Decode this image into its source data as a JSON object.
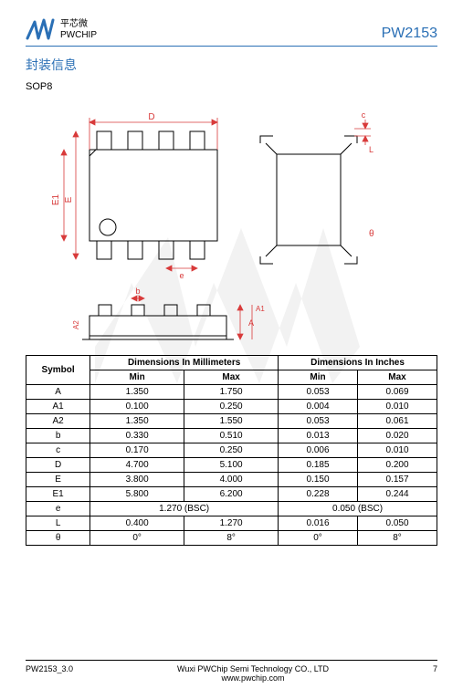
{
  "header": {
    "company_cn": "平芯微",
    "company_en": "PWCHIP",
    "part_number": "PW2153",
    "logo_color": "#2a6fb5"
  },
  "section": {
    "title": "封装信息",
    "package_type": "SOP8"
  },
  "drawing": {
    "dim_color": "#d83a3a",
    "line_color": "#000000",
    "labels": {
      "D": "D",
      "E": "E",
      "E1": "E1",
      "e": "e",
      "b": "b",
      "A": "A",
      "A1": "A1",
      "A2": "A2",
      "c": "c",
      "L": "L",
      "theta": "θ"
    }
  },
  "table": {
    "symbol_header": "Symbol",
    "mm_header": "Dimensions In Millimeters",
    "in_header": "Dimensions In Inches",
    "min_label": "Min",
    "max_label": "Max",
    "rows": [
      {
        "sym": "A",
        "mm_min": "1.350",
        "mm_max": "1.750",
        "in_min": "0.053",
        "in_max": "0.069"
      },
      {
        "sym": "A1",
        "mm_min": "0.100",
        "mm_max": "0.250",
        "in_min": "0.004",
        "in_max": "0.010"
      },
      {
        "sym": "A2",
        "mm_min": "1.350",
        "mm_max": "1.550",
        "in_min": "0.053",
        "in_max": "0.061"
      },
      {
        "sym": "b",
        "mm_min": "0.330",
        "mm_max": "0.510",
        "in_min": "0.013",
        "in_max": "0.020"
      },
      {
        "sym": "c",
        "mm_min": "0.170",
        "mm_max": "0.250",
        "in_min": "0.006",
        "in_max": "0.010"
      },
      {
        "sym": "D",
        "mm_min": "4.700",
        "mm_max": "5.100",
        "in_min": "0.185",
        "in_max": "0.200"
      },
      {
        "sym": "E",
        "mm_min": "3.800",
        "mm_max": "4.000",
        "in_min": "0.150",
        "in_max": "0.157"
      },
      {
        "sym": "E1",
        "mm_min": "5.800",
        "mm_max": "6.200",
        "in_min": "0.228",
        "in_max": "0.244"
      }
    ],
    "bsc_row": {
      "sym": "e",
      "mm_bsc": "1.270 (BSC)",
      "in_bsc": "0.050 (BSC)"
    },
    "rows2": [
      {
        "sym": "L",
        "mm_min": "0.400",
        "mm_max": "1.270",
        "in_min": "0.016",
        "in_max": "0.050"
      },
      {
        "sym": "θ",
        "mm_min": "0°",
        "mm_max": "8°",
        "in_min": "0°",
        "in_max": "8°"
      }
    ]
  },
  "footer": {
    "doc_rev": "PW2153_3.0",
    "company_line": "Wuxi PWChip Semi Technology CO., LTD",
    "url": "www.pwchip.com",
    "page_num": "7"
  },
  "watermark": {
    "color": "#9a9a9a"
  }
}
